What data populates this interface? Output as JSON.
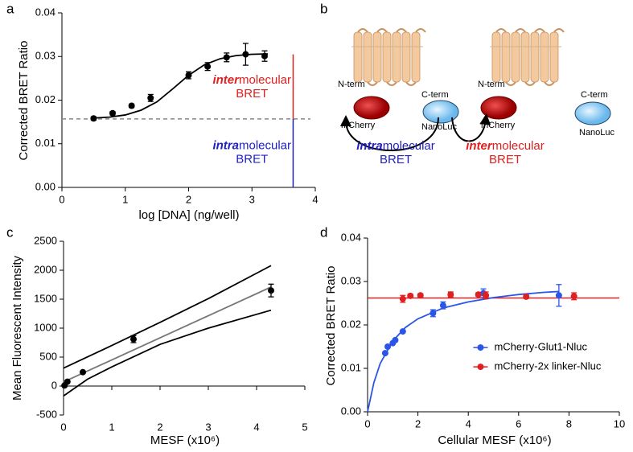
{
  "chart_data": [
    {
      "type": "scatter",
      "panel_label": "a",
      "ylabel": "Corrected BRET Ratio",
      "xlabel": "log [DNA] (ng/well)",
      "xlim": [
        0,
        4
      ],
      "xticks": [
        0,
        1,
        2,
        3,
        4
      ],
      "ylim": [
        0,
        0.04
      ],
      "yticks": [
        {
          "value": 0,
          "label": "0.00"
        },
        {
          "value": 0.01,
          "label": "0.01"
        },
        {
          "value": 0.02,
          "label": "0.02"
        },
        {
          "value": 0.03,
          "label": "0.03"
        },
        {
          "value": 0.04,
          "label": "0.04"
        }
      ],
      "series": [
        {
          "color": "#000000",
          "x": [
            0.5,
            0.8,
            1.1,
            1.4,
            2.0,
            2.3,
            2.6,
            2.9,
            3.2
          ],
          "values": [
            0.0158,
            0.017,
            0.0187,
            0.0205,
            0.0257,
            0.0277,
            0.0298,
            0.0305,
            0.0301
          ],
          "errors": [
            0.0004,
            0.0004,
            0.0004,
            0.0008,
            0.0008,
            0.0009,
            0.001,
            0.0025,
            0.0012
          ]
        }
      ],
      "fits": [
        {
          "color": "#000000",
          "x": [
            0.5,
            0.75,
            1.0,
            1.25,
            1.5,
            1.75,
            2.0,
            2.25,
            2.5,
            2.75,
            3.0,
            3.25
          ],
          "values": [
            0.0159,
            0.0161,
            0.0166,
            0.0177,
            0.0196,
            0.0226,
            0.0257,
            0.0281,
            0.0295,
            0.0302,
            0.0305,
            0.0306
          ]
        }
      ],
      "hlines": [
        {
          "y": 0.0157,
          "color": "#888888",
          "dashed": true
        }
      ],
      "vlines": [
        {
          "x": 3.65,
          "y0": 0.0157,
          "y1": 0.0305,
          "color": "#e02020"
        },
        {
          "x": 3.65,
          "y0": 0,
          "y1": 0.0157,
          "color": "#2020c0"
        }
      ],
      "annotations": [
        {
          "emph": "inter",
          "rest": "molecular",
          "line2": "BRET",
          "color": "#e02020"
        },
        {
          "emph": "intra",
          "rest": "molecular",
          "line2": "BRET",
          "color": "#2020c0"
        }
      ]
    },
    {
      "type": "scatter",
      "panel_label": "c",
      "ylabel": "Mean Fluorescent Intensity",
      "xlabel": "MESF (x10⁶)",
      "xlim": [
        0,
        5
      ],
      "xticks": [
        0,
        1,
        2,
        3,
        4,
        5
      ],
      "ylim": [
        -500,
        2500
      ],
      "yticks": [
        -500,
        0,
        500,
        1000,
        1500,
        2000,
        2500
      ],
      "series": [
        {
          "color": "#000000",
          "x": [
            0.02,
            0.08,
            0.4,
            1.45,
            4.3
          ],
          "values": [
            10,
            75,
            240,
            810,
            1650
          ],
          "errors": [
            0,
            0,
            0,
            60,
            110
          ]
        }
      ],
      "fits": [
        {
          "color": "#777777",
          "x": [
            0,
            4.3
          ],
          "values": [
            70,
            1710
          ]
        },
        {
          "color": "#000000",
          "x": [
            0,
            1,
            2,
            3,
            4.3
          ],
          "values": [
            310,
            700,
            1100,
            1510,
            2080
          ]
        },
        {
          "color": "#000000",
          "x": [
            0,
            0.5,
            1,
            2,
            3,
            4.3
          ],
          "values": [
            -170,
            120,
            330,
            720,
            1000,
            1310
          ]
        }
      ]
    },
    {
      "type": "scatter",
      "panel_label": "d",
      "ylabel": "Corrected BRET Ratio",
      "xlabel": "Cellular MESF (x10⁶)",
      "xlim": [
        0,
        10
      ],
      "xticks": [
        0,
        2,
        4,
        6,
        8,
        10
      ],
      "ylim": [
        0,
        0.04
      ],
      "yticks": [
        {
          "value": 0,
          "label": "0.00"
        },
        {
          "value": 0.01,
          "label": "0.01"
        },
        {
          "value": 0.02,
          "label": "0.02"
        },
        {
          "value": 0.03,
          "label": "0.03"
        },
        {
          "value": 0.04,
          "label": "0.04"
        }
      ],
      "series": [
        {
          "name": "mCherry-Glut1-Nluc",
          "color": "#2b55e6",
          "x": [
            0.7,
            0.8,
            1.0,
            1.1,
            1.4,
            2.6,
            3.0,
            4.6,
            7.6
          ],
          "values": [
            0.0135,
            0.015,
            0.0158,
            0.0165,
            0.0185,
            0.0227,
            0.0245,
            0.0273,
            0.0268
          ],
          "errors": [
            0,
            0,
            0,
            0,
            0,
            0.0008,
            0.0008,
            0.001,
            0.0025
          ]
        },
        {
          "name": "mCherry-2x linker-Nluc",
          "color": "#e02020",
          "x": [
            1.4,
            1.7,
            2.1,
            3.3,
            4.4,
            4.7,
            6.3,
            8.2
          ],
          "values": [
            0.026,
            0.0267,
            0.0268,
            0.027,
            0.027,
            0.0268,
            0.0265,
            0.0266
          ],
          "errors": [
            0.0008,
            0.0004,
            0.0004,
            0.0006,
            0.0004,
            0.0008,
            0.0004,
            0.0008
          ]
        }
      ],
      "fits": [
        {
          "color": "#2b55e6",
          "x": [
            0,
            0.25,
            0.5,
            1,
            1.5,
            2,
            3,
            4,
            5,
            6,
            7,
            7.6
          ],
          "values": [
            0,
            0.0067,
            0.0111,
            0.0163,
            0.0194,
            0.0214,
            0.0239,
            0.0253,
            0.0263,
            0.027,
            0.0275,
            0.0277
          ]
        }
      ],
      "hlines": [
        {
          "y": 0.0262,
          "color": "#e02020",
          "dashed": false
        }
      ],
      "legend": "lower right"
    }
  ],
  "diagram": {
    "panel_label": "b",
    "left": {
      "n_term": "N-term",
      "c_term": "C-term",
      "donor": "mCherry",
      "acceptor": "NanoLuc"
    },
    "right": {
      "n_term": "N-term",
      "c_term": "C-term",
      "donor": "mCherry",
      "acceptor": "NanoLuc"
    },
    "intra": {
      "emph": "intra",
      "rest": "molecular",
      "line2": "BRET"
    },
    "inter": {
      "emph": "inter",
      "rest": "molecular",
      "line2": "BRET"
    }
  }
}
